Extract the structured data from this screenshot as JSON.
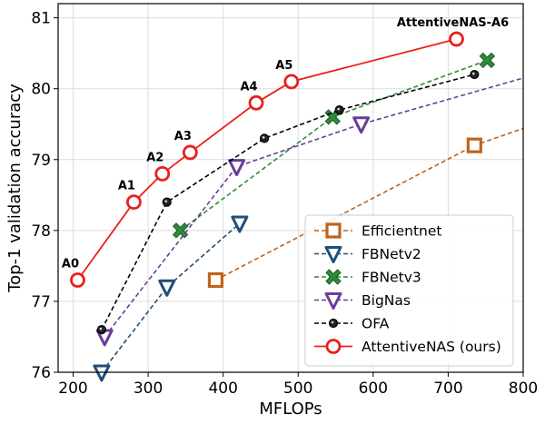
{
  "chart_data": {
    "type": "line",
    "xlabel": "MFLOPs",
    "ylabel": "Top-1 validation accuracy",
    "xlim": [
      180,
      800
    ],
    "ylim": [
      76,
      81.2
    ],
    "xticks": [
      200,
      300,
      400,
      500,
      600,
      700,
      800
    ],
    "yticks": [
      76,
      77,
      78,
      79,
      80,
      81
    ],
    "grid": true,
    "legend_position": "lower-right",
    "series": [
      {
        "name": "Efficientnet",
        "color": "#c0631a",
        "linestyle": "dashed",
        "marker": "square",
        "x": [
          390,
          735,
          800
        ],
        "y": [
          77.3,
          79.2,
          79.44
        ]
      },
      {
        "name": "FBNetv2",
        "color": "#1f4e79",
        "linestyle": "dashed",
        "marker": "triangle-down",
        "x": [
          238,
          325,
          422
        ],
        "y": [
          76.0,
          77.2,
          78.1
        ]
      },
      {
        "name": "FBNetv3",
        "color": "#2e8b3a",
        "linestyle": "dashed",
        "marker": "x-filled",
        "x": [
          343,
          546,
          752
        ],
        "y": [
          78.0,
          79.6,
          80.4
        ]
      },
      {
        "name": "BigNas",
        "color": "#6a3d9a",
        "linestyle": "dashed",
        "marker": "triangle-down",
        "x": [
          242,
          418,
          584,
          800
        ],
        "y": [
          76.5,
          78.9,
          79.5,
          80.15
        ]
      },
      {
        "name": "OFA",
        "color": "#000000",
        "linestyle": "dashed",
        "marker": "dot-ring",
        "x": [
          238,
          325,
          455,
          555,
          735
        ],
        "y": [
          76.6,
          78.4,
          79.3,
          79.7,
          80.2
        ]
      },
      {
        "name": "AttentiveNAS (ours)",
        "color": "#e8201c",
        "linestyle": "solid",
        "marker": "circle-open",
        "x": [
          206,
          281,
          319,
          356,
          444,
          491,
          711
        ],
        "y": [
          77.3,
          78.4,
          78.8,
          79.1,
          79.8,
          80.1,
          80.7
        ],
        "point_labels": [
          "A0",
          "A1",
          "A2",
          "A3",
          "A4",
          "A5",
          "AttentiveNAS-A6"
        ]
      }
    ]
  }
}
